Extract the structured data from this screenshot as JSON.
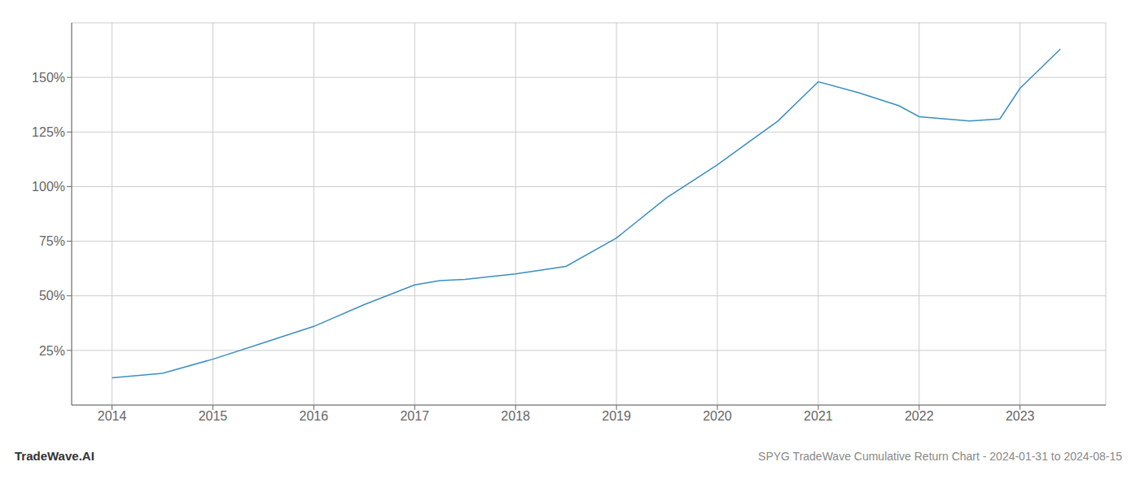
{
  "chart_data": {
    "type": "line",
    "title": "SPYG TradeWave Cumulative Return Chart - 2024-01-31 to 2024-08-15",
    "annotations": [
      "TradeWave.AI"
    ],
    "x": [
      2014.0,
      2014.5,
      2015.0,
      2015.5,
      2016.0,
      2016.5,
      2017.0,
      2017.25,
      2017.5,
      2018.0,
      2018.5,
      2019.0,
      2019.5,
      2020.0,
      2020.3,
      2020.6,
      2021.0,
      2021.4,
      2021.8,
      2022.0,
      2022.5,
      2022.8,
      2023.0,
      2023.4
    ],
    "values": [
      12.5,
      14.5,
      21.0,
      28.5,
      36.0,
      46.0,
      55.0,
      57.0,
      57.5,
      60.0,
      63.5,
      76.5,
      95.0,
      110.0,
      120.0,
      130.0,
      148.0,
      143.0,
      137.0,
      132.0,
      130.0,
      131.0,
      145.0,
      163.0
    ],
    "color": "#3a8fc1",
    "xlim": [
      2013.6,
      2023.85
    ],
    "ylim": [
      0,
      175
    ],
    "xticks": [
      2014,
      2015,
      2016,
      2017,
      2018,
      2019,
      2020,
      2021,
      2022,
      2023
    ],
    "yticks": [
      {
        "value": 25,
        "label": "25%"
      },
      {
        "value": 50,
        "label": "50%"
      },
      {
        "value": 75,
        "label": "75%"
      },
      {
        "value": 100,
        "label": "100%"
      },
      {
        "value": 125,
        "label": "125%"
      },
      {
        "value": 150,
        "label": "150%"
      }
    ],
    "grid": true
  }
}
